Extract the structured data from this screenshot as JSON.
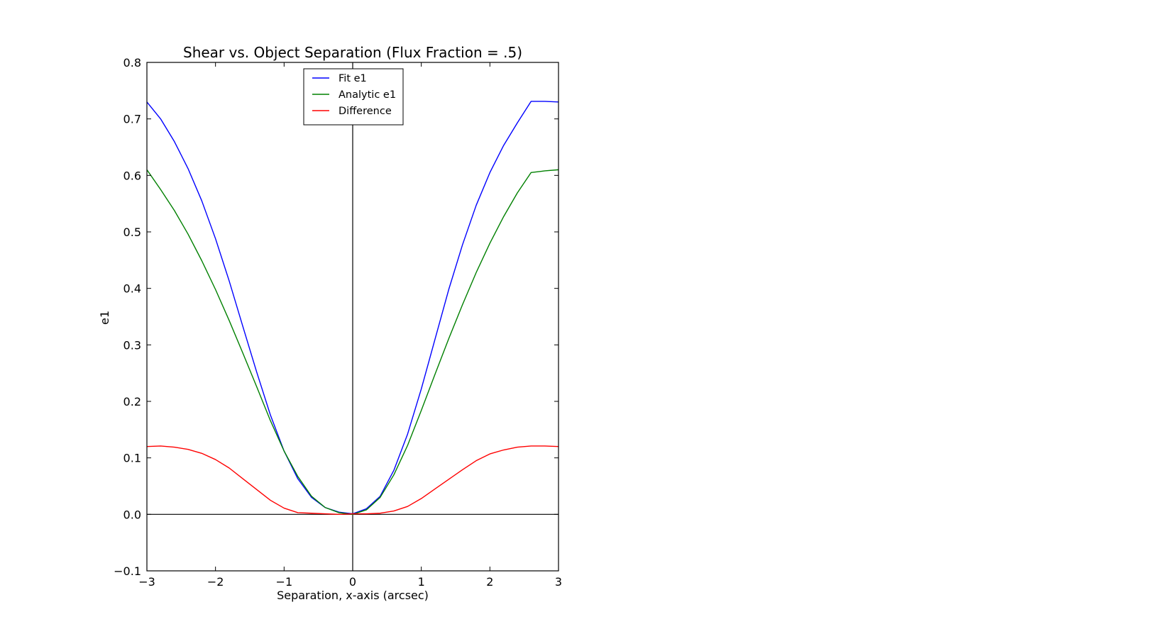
{
  "chart_data": {
    "type": "line",
    "title": "Shear vs. Object Separation (Flux Fraction = .5)",
    "xlabel": "Separation, x-axis (arcsec)",
    "ylabel": "e1",
    "xlim": [
      -3,
      3
    ],
    "ylim": [
      -0.1,
      0.8
    ],
    "xticks": [
      -3,
      -2,
      -1,
      0,
      1,
      2,
      3
    ],
    "xtick_labels": [
      "−3",
      "−2",
      "−1",
      "0",
      "1",
      "2",
      "3"
    ],
    "yticks": [
      -0.1,
      0.0,
      0.1,
      0.2,
      0.3,
      0.4,
      0.5,
      0.6,
      0.7,
      0.8
    ],
    "ytick_labels": [
      "−0.1",
      "0.0",
      "0.1",
      "0.2",
      "0.3",
      "0.4",
      "0.5",
      "0.6",
      "0.7",
      "0.8"
    ],
    "reference_lines": {
      "x": 0,
      "y": 0
    },
    "grid": false,
    "legend_position": "upper center",
    "series": [
      {
        "name": "Fit e1",
        "color": "#0000ff",
        "x": [
          -3.0,
          -2.8,
          -2.6,
          -2.4,
          -2.2,
          -2.0,
          -1.8,
          -1.6,
          -1.4,
          -1.2,
          -1.0,
          -0.8,
          -0.6,
          -0.4,
          -0.2,
          0.0,
          0.2,
          0.4,
          0.6,
          0.8,
          1.0,
          1.2,
          1.4,
          1.6,
          1.8,
          2.0,
          2.2,
          2.4,
          2.6,
          2.8,
          3.0
        ],
        "y": [
          0.73,
          0.7,
          0.66,
          0.612,
          0.555,
          0.488,
          0.413,
          0.332,
          0.252,
          0.176,
          0.112,
          0.063,
          0.03,
          0.012,
          0.004,
          0.001,
          0.01,
          0.032,
          0.078,
          0.142,
          0.222,
          0.31,
          0.398,
          0.477,
          0.547,
          0.605,
          0.653,
          0.693,
          0.731,
          0.731,
          0.73
        ],
        "values_note": ""
      },
      {
        "name": "Analytic e1",
        "color": "#008000",
        "x": [
          -3.0,
          -2.8,
          -2.6,
          -2.4,
          -2.2,
          -2.0,
          -1.8,
          -1.6,
          -1.4,
          -1.2,
          -1.0,
          -0.8,
          -0.6,
          -0.4,
          -0.2,
          0.0,
          0.2,
          0.4,
          0.6,
          0.8,
          1.0,
          1.2,
          1.4,
          1.6,
          1.8,
          2.0,
          2.2,
          2.4,
          2.6,
          2.8,
          3.0
        ],
        "y": [
          0.61,
          0.575,
          0.538,
          0.496,
          0.449,
          0.398,
          0.343,
          0.285,
          0.226,
          0.166,
          0.112,
          0.067,
          0.032,
          0.012,
          0.003,
          0.0,
          0.008,
          0.03,
          0.07,
          0.122,
          0.184,
          0.248,
          0.311,
          0.371,
          0.428,
          0.48,
          0.527,
          0.569,
          0.605,
          0.608,
          0.61
        ]
      },
      {
        "name": "Difference",
        "color": "#ff0000",
        "x": [
          -3.0,
          -2.8,
          -2.6,
          -2.4,
          -2.2,
          -2.0,
          -1.8,
          -1.6,
          -1.4,
          -1.2,
          -1.0,
          -0.8,
          -0.6,
          -0.4,
          -0.2,
          0.0,
          0.2,
          0.4,
          0.6,
          0.8,
          1.0,
          1.2,
          1.4,
          1.6,
          1.8,
          2.0,
          2.2,
          2.4,
          2.6,
          2.8,
          3.0
        ],
        "y": [
          0.12,
          0.121,
          0.119,
          0.115,
          0.108,
          0.097,
          0.082,
          0.063,
          0.044,
          0.025,
          0.011,
          0.003,
          0.002,
          0.001,
          0.0,
          0.001,
          0.001,
          0.002,
          0.006,
          0.014,
          0.028,
          0.045,
          0.062,
          0.079,
          0.095,
          0.107,
          0.114,
          0.119,
          0.121,
          0.121,
          0.12
        ]
      }
    ]
  }
}
